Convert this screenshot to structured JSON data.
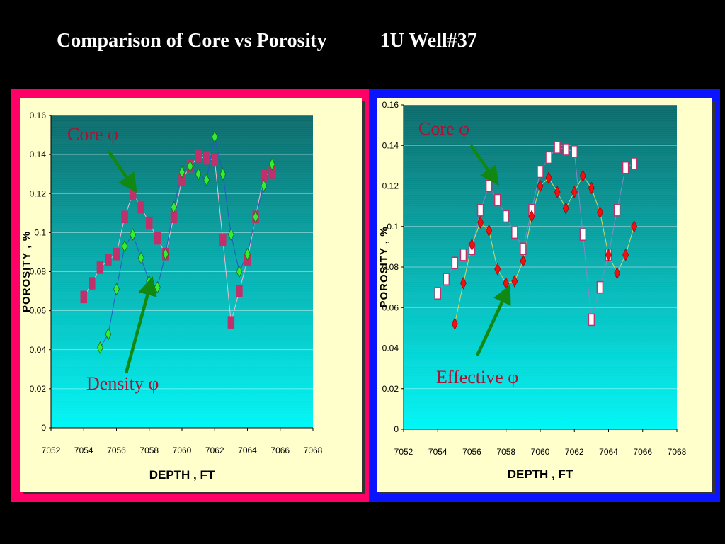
{
  "title": {
    "left": "Comparison of Core vs Porosity",
    "right": "1U Well#37"
  },
  "colors": {
    "left_frame": "#ff0066",
    "right_frame": "#0a14ff",
    "panel_bg": "#ffffcc",
    "plot_top": "#0c6a6a",
    "plot_bottom": "#00f6f6",
    "core_marker": "#c0306a",
    "density_marker": "#33ee33",
    "effective_marker": "#ee1111",
    "arrow": "#118811",
    "annotation_text": "#aa1133"
  },
  "chart_data": [
    {
      "type": "line",
      "xlabel": "DEPTH , FT",
      "ylabel": "POROSITY , %",
      "xlim": [
        7052,
        7068
      ],
      "ylim": [
        0,
        0.16
      ],
      "xticks": [
        "7052",
        "7054",
        "7056",
        "7058",
        "7060",
        "7062",
        "7064",
        "7066",
        "7068"
      ],
      "yticks": [
        "0",
        "0.02",
        "0.04",
        "0.06",
        "0.08",
        "0.1",
        "0.12",
        "0.14",
        "0.16"
      ],
      "annotations": [
        "Core φ",
        "Density φ"
      ],
      "series": [
        {
          "name": "Core φ",
          "marker": "square",
          "x": [
            7054,
            7054.5,
            7055,
            7055.5,
            7056,
            7056.5,
            7057,
            7057.5,
            7058,
            7058.5,
            7059,
            7059.5,
            7060,
            7060.5,
            7061,
            7061.5,
            7062,
            7062.5,
            7063,
            7063.5,
            7064,
            7064.5,
            7065,
            7065.5
          ],
          "y": [
            0.067,
            0.074,
            0.082,
            0.086,
            0.089,
            0.108,
            0.12,
            0.113,
            0.105,
            0.097,
            0.089,
            0.108,
            0.127,
            0.134,
            0.139,
            0.138,
            0.137,
            0.096,
            0.054,
            0.07,
            0.086,
            0.108,
            0.129,
            0.131
          ]
        },
        {
          "name": "Density φ",
          "marker": "diamond",
          "x": [
            7055,
            7055.5,
            7056,
            7056.5,
            7057,
            7057.5,
            7058,
            7058.5,
            7059,
            7059.5,
            7060,
            7060.5,
            7061,
            7061.5,
            7062,
            7062.5,
            7063,
            7063.5,
            7064,
            7064.5,
            7065,
            7065.5
          ],
          "y": [
            0.041,
            0.048,
            0.071,
            0.093,
            0.099,
            0.087,
            0.075,
            0.072,
            0.089,
            0.113,
            0.131,
            0.134,
            0.13,
            0.127,
            0.149,
            0.13,
            0.099,
            0.08,
            0.089,
            0.108,
            0.124,
            0.135
          ]
        }
      ]
    },
    {
      "type": "line",
      "xlabel": "DEPTH , FT",
      "ylabel": "POROSITY , %",
      "xlim": [
        7052,
        7068
      ],
      "ylim": [
        0,
        0.16
      ],
      "xticks": [
        "7052",
        "7054",
        "7056",
        "7058",
        "7060",
        "7062",
        "7064",
        "7066",
        "7068"
      ],
      "yticks": [
        "0",
        "0.02",
        "0.04",
        "0.06",
        "0.08",
        "0.1",
        "0.12",
        "0.14",
        "0.16"
      ],
      "annotations": [
        "Core φ",
        "Effective φ"
      ],
      "series": [
        {
          "name": "Core φ",
          "marker": "square-open",
          "x": [
            7054,
            7054.5,
            7055,
            7055.5,
            7056,
            7056.5,
            7057,
            7057.5,
            7058,
            7058.5,
            7059,
            7059.5,
            7060,
            7060.5,
            7061,
            7061.5,
            7062,
            7062.5,
            7063,
            7063.5,
            7064,
            7064.5,
            7065,
            7065.5
          ],
          "y": [
            0.067,
            0.074,
            0.082,
            0.086,
            0.089,
            0.108,
            0.12,
            0.113,
            0.105,
            0.097,
            0.089,
            0.108,
            0.127,
            0.134,
            0.139,
            0.138,
            0.137,
            0.096,
            0.054,
            0.07,
            0.086,
            0.108,
            0.129,
            0.131
          ]
        },
        {
          "name": "Effective φ",
          "marker": "diamond",
          "x": [
            7055,
            7055.5,
            7056,
            7056.5,
            7057,
            7057.5,
            7058,
            7058.5,
            7059,
            7059.5,
            7060,
            7060.5,
            7061,
            7061.5,
            7062,
            7062.5,
            7063,
            7063.5,
            7064,
            7064.5,
            7065,
            7065.5
          ],
          "y": [
            0.052,
            0.072,
            0.091,
            0.102,
            0.098,
            0.079,
            0.072,
            0.073,
            0.083,
            0.105,
            0.12,
            0.124,
            0.117,
            0.109,
            0.117,
            0.125,
            0.119,
            0.107,
            0.086,
            0.077,
            0.086,
            0.1
          ]
        }
      ]
    }
  ]
}
